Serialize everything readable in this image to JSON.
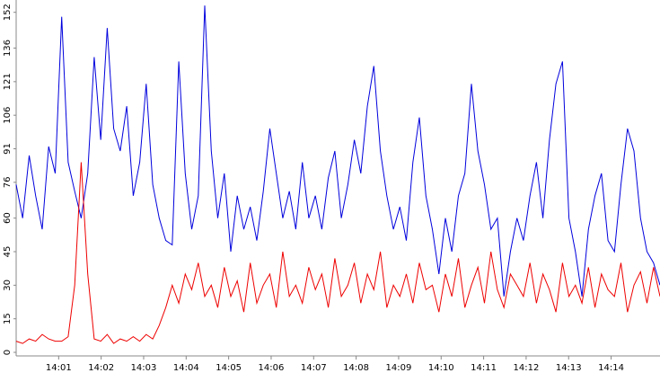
{
  "chart_data": {
    "type": "line",
    "xlim": [
      0,
      15.15
    ],
    "xticks": [
      {
        "value": 1,
        "label": "14:01"
      },
      {
        "value": 2,
        "label": "14:02"
      },
      {
        "value": 3,
        "label": "14:03"
      },
      {
        "value": 4,
        "label": "14:04"
      },
      {
        "value": 5,
        "label": "14:05"
      },
      {
        "value": 6,
        "label": "14:06"
      },
      {
        "value": 7,
        "label": "14:07"
      },
      {
        "value": 8,
        "label": "14:08"
      },
      {
        "value": 9,
        "label": "14:09"
      },
      {
        "value": 10,
        "label": "14:10"
      },
      {
        "value": 11,
        "label": "14:11"
      },
      {
        "value": 12,
        "label": "14:12"
      },
      {
        "value": 13,
        "label": "14:13"
      },
      {
        "value": 14,
        "label": "14:14"
      }
    ],
    "ylim": [
      -1.6,
      157.5
    ],
    "yticks": [
      0,
      15,
      30,
      45,
      60,
      76,
      91,
      106,
      121,
      136,
      152
    ],
    "grid": false,
    "series": [
      {
        "color": "#0000dd",
        "values": [
          75,
          60,
          88,
          70,
          55,
          92,
          80,
          150,
          85,
          72,
          60,
          80,
          132,
          95,
          145,
          100,
          90,
          110,
          70,
          85,
          120,
          75,
          60,
          50,
          48,
          130,
          80,
          55,
          70,
          155,
          90,
          60,
          80,
          45,
          70,
          55,
          65,
          50,
          72,
          100,
          80,
          60,
          72,
          55,
          85,
          60,
          70,
          55,
          78,
          90,
          60,
          75,
          95,
          80,
          110,
          128,
          90,
          70,
          55,
          65,
          50,
          85,
          105,
          70,
          55,
          35,
          60,
          45,
          70,
          80,
          120,
          90,
          75,
          55,
          60,
          25,
          45,
          60,
          50,
          70,
          85,
          60,
          95,
          120,
          130,
          60,
          45,
          25,
          55,
          70,
          80,
          50,
          45,
          75,
          100,
          90,
          60,
          45,
          40,
          30
        ]
      },
      {
        "color": "#ee0000",
        "values": [
          5,
          4,
          6,
          5,
          8,
          6,
          5,
          5,
          7,
          30,
          85,
          35,
          6,
          5,
          8,
          4,
          6,
          5,
          7,
          5,
          8,
          6,
          12,
          20,
          30,
          22,
          35,
          28,
          40,
          25,
          30,
          20,
          38,
          25,
          32,
          18,
          40,
          22,
          30,
          35,
          20,
          45,
          25,
          30,
          22,
          38,
          28,
          35,
          20,
          42,
          25,
          30,
          40,
          22,
          35,
          28,
          45,
          20,
          30,
          25,
          35,
          22,
          40,
          28,
          30,
          18,
          35,
          25,
          42,
          20,
          30,
          38,
          22,
          45,
          28,
          20,
          35,
          30,
          25,
          40,
          22,
          35,
          28,
          18,
          40,
          25,
          30,
          22,
          38,
          20,
          35,
          28,
          25,
          40,
          18,
          30,
          36,
          22,
          38,
          25
        ]
      }
    ]
  }
}
